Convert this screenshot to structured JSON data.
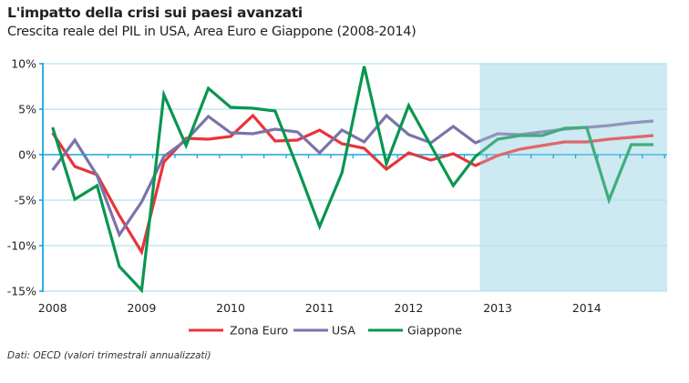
{
  "header": {
    "title": "L'impatto della crisi sui paesi avanzati",
    "subtitle": "Crescita reale del PIL in USA, Area Euro e Giappone (2008-2014)"
  },
  "footer": {
    "source": "Dati: OECD (valori trimestrali annualizzati)"
  },
  "colors": {
    "axis": "#1aa7dc",
    "grid": "#9fdcee",
    "shade": "#cde9f2",
    "zona_euro": "#e8343a",
    "usa": "#7b73aa",
    "giappone": "#0a9650"
  },
  "chart_data": {
    "type": "line",
    "title": "L'impatto della crisi sui paesi avanzati",
    "subtitle": "Crescita reale del PIL in USA, Area Euro e Giappone (2008-2014)",
    "xlabel": "",
    "ylabel": "",
    "x": [
      "2008 Q1",
      "2008 Q2",
      "2008 Q3",
      "2008 Q4",
      "2009 Q1",
      "2009 Q2",
      "2009 Q3",
      "2009 Q4",
      "2010 Q1",
      "2010 Q2",
      "2010 Q3",
      "2010 Q4",
      "2011 Q1",
      "2011 Q2",
      "2011 Q3",
      "2011 Q4",
      "2012 Q1",
      "2012 Q2",
      "2012 Q3",
      "2012 Q4",
      "2013 Q1",
      "2013 Q2",
      "2013 Q3",
      "2013 Q4",
      "2014 Q1",
      "2014 Q2",
      "2014 Q3",
      "2014 Q4"
    ],
    "x_tick_labels": [
      "2008",
      "2009",
      "2010",
      "2011",
      "2012",
      "2013",
      "2014"
    ],
    "y_tick_labels": [
      "10%",
      "5%",
      "0%",
      "-5%",
      "-10%",
      "-15%"
    ],
    "y_ticks": [
      10,
      5,
      0,
      -5,
      -10,
      -15
    ],
    "ylim": [
      -15,
      10
    ],
    "grid": true,
    "shaded_region": {
      "from_index": 19.2,
      "to_index": 28.2,
      "meaning": "forecast/recent period"
    },
    "legend_placement": "bottom-center",
    "series": [
      {
        "name": "Zona Euro",
        "color_key": "zona_euro",
        "values": [
          2.4,
          -1.3,
          -2.2,
          -6.7,
          -10.7,
          -0.8,
          1.8,
          1.7,
          2.0,
          4.3,
          1.5,
          1.6,
          2.7,
          1.2,
          0.7,
          -1.6,
          0.2,
          -0.6,
          0.1,
          -1.2,
          -0.1,
          0.6,
          1.0,
          1.4,
          1.4,
          1.7,
          1.9,
          2.1
        ]
      },
      {
        "name": "USA",
        "color_key": "usa",
        "values": [
          -1.7,
          1.6,
          -2.3,
          -8.8,
          -5.2,
          -0.2,
          1.6,
          4.2,
          2.4,
          2.3,
          2.8,
          2.5,
          0.2,
          2.7,
          1.4,
          4.3,
          2.2,
          1.3,
          3.1,
          1.3,
          2.3,
          2.2,
          2.5,
          2.8,
          3.0,
          3.2,
          3.5,
          3.7
        ]
      },
      {
        "name": "Giappone",
        "color_key": "giappone",
        "values": [
          3.0,
          -4.9,
          -3.4,
          -12.3,
          -14.9,
          6.6,
          1.0,
          7.3,
          5.2,
          5.1,
          4.8,
          -1.4,
          -7.9,
          -2.0,
          9.7,
          -1.0,
          5.4,
          1.0,
          -3.4,
          -0.2,
          1.7,
          2.1,
          2.1,
          2.9,
          3.0,
          -5.0,
          1.1,
          1.1
        ]
      }
    ]
  }
}
